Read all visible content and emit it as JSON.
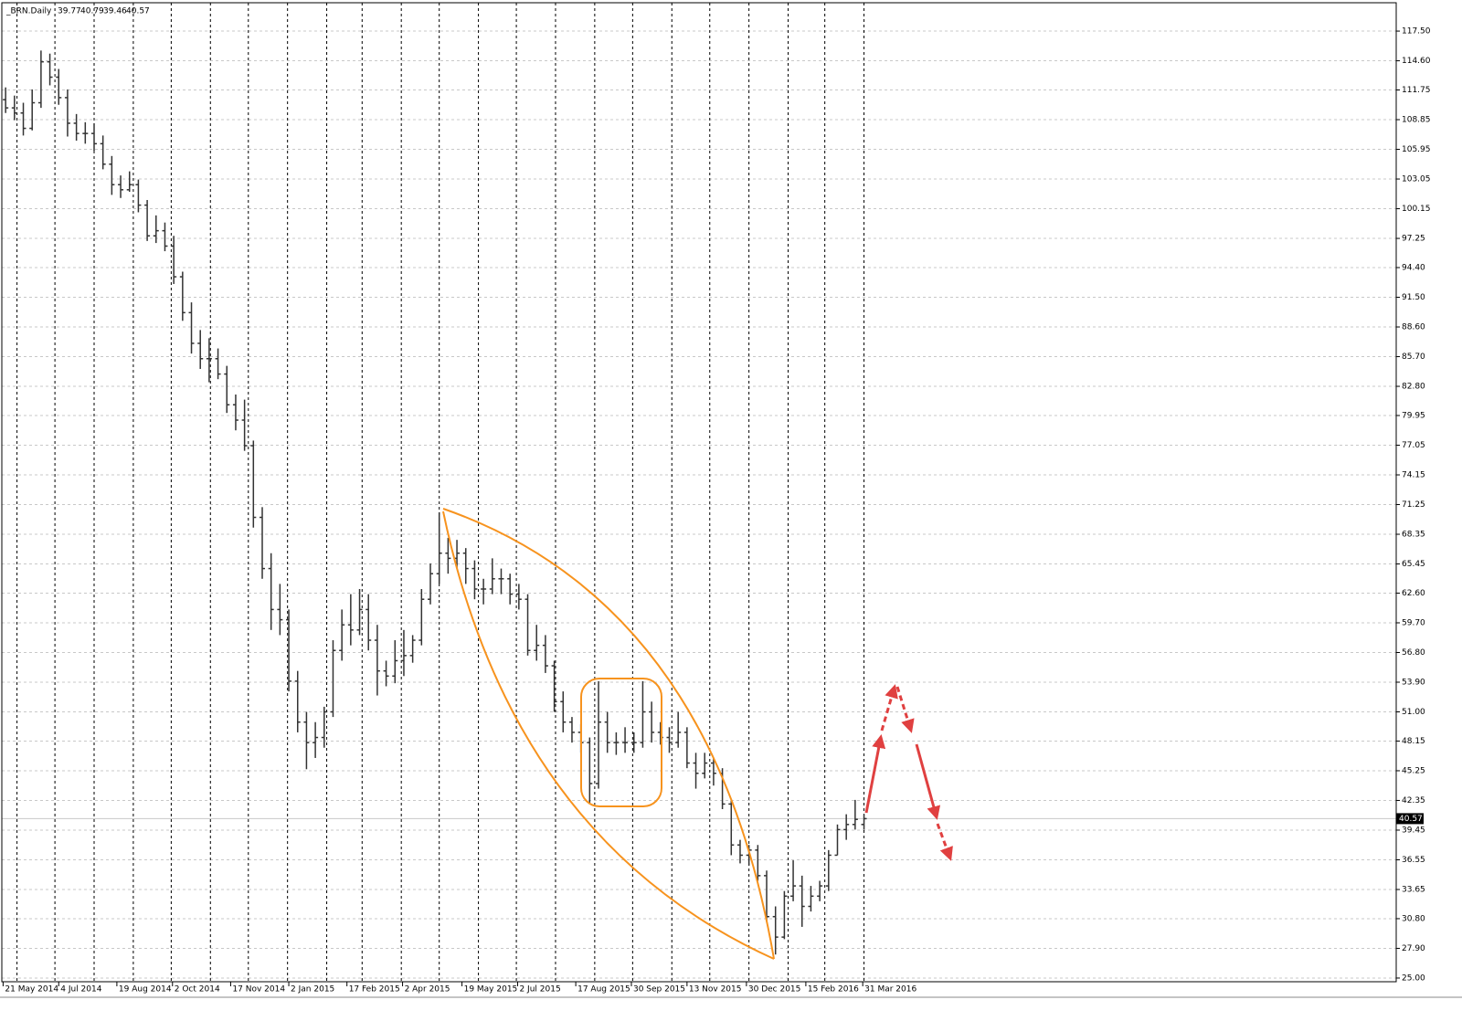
{
  "chart_data": {
    "type": "ohlc",
    "title": "_BRN.Daily",
    "last_bar": {
      "open": 39.77,
      "high": 40.79,
      "low": 39.46,
      "close": 40.57
    },
    "color": "#333333",
    "separator_color": "#000000",
    "grid": true,
    "x": [
      "2014-05-23",
      "2014-05-30",
      "2014-06-06",
      "2014-06-13",
      "2014-06-20",
      "2014-06-27",
      "2014-07-04",
      "2014-07-11",
      "2014-07-18",
      "2014-07-25",
      "2014-08-01",
      "2014-08-08",
      "2014-08-15",
      "2014-08-22",
      "2014-08-29",
      "2014-09-05",
      "2014-09-12",
      "2014-09-19",
      "2014-09-26",
      "2014-10-03",
      "2014-10-10",
      "2014-10-17",
      "2014-10-24",
      "2014-10-31",
      "2014-11-07",
      "2014-11-14",
      "2014-11-21",
      "2014-11-28",
      "2014-12-05",
      "2014-12-12",
      "2014-12-19",
      "2014-12-26",
      "2015-01-02",
      "2015-01-09",
      "2015-01-16",
      "2015-01-23",
      "2015-01-30",
      "2015-02-06",
      "2015-02-13",
      "2015-02-20",
      "2015-02-27",
      "2015-03-06",
      "2015-03-13",
      "2015-03-20",
      "2015-03-27",
      "2015-04-03",
      "2015-04-10",
      "2015-04-17",
      "2015-04-24",
      "2015-05-01",
      "2015-05-08",
      "2015-05-15",
      "2015-05-22",
      "2015-05-29",
      "2015-06-05",
      "2015-06-12",
      "2015-06-19",
      "2015-06-26",
      "2015-07-03",
      "2015-07-10",
      "2015-07-17",
      "2015-07-24",
      "2015-07-31",
      "2015-08-07",
      "2015-08-14",
      "2015-08-21",
      "2015-08-28",
      "2015-09-04",
      "2015-09-11",
      "2015-09-18",
      "2015-09-25",
      "2015-10-02",
      "2015-10-09",
      "2015-10-16",
      "2015-10-23",
      "2015-10-30",
      "2015-11-06",
      "2015-11-13",
      "2015-11-20",
      "2015-11-27",
      "2015-12-04",
      "2015-12-11",
      "2015-12-18",
      "2015-12-25",
      "2016-01-01",
      "2016-01-08",
      "2016-01-15",
      "2016-01-22",
      "2016-01-29",
      "2016-02-05",
      "2016-02-12",
      "2016-02-19",
      "2016-02-26",
      "2016-03-04",
      "2016-03-11",
      "2016-03-18",
      "2016-03-25",
      "2016-04-01"
    ],
    "open": [
      110.8,
      110,
      109.5,
      108,
      110.5,
      114.5,
      113,
      111,
      108.5,
      107.5,
      107.5,
      106.5,
      104.5,
      102.5,
      102,
      102.5,
      100.5,
      97.5,
      98,
      96.5,
      93.5,
      90,
      87,
      85.5,
      85.5,
      84,
      81,
      79.5,
      77,
      70,
      65,
      61,
      60,
      54,
      50,
      48,
      48.5,
      51,
      57,
      59.5,
      59,
      61,
      58,
      55,
      54.5,
      56,
      56.5,
      58,
      62,
      64.5,
      66.5,
      66,
      66.5,
      65,
      63,
      63,
      64,
      64,
      62.5,
      62,
      57,
      57.5,
      55.5,
      52,
      50,
      49,
      48,
      44,
      50,
      48,
      48,
      48,
      48,
      51,
      49,
      48.5,
      48,
      49,
      46,
      45,
      46,
      45,
      42,
      38,
      37,
      37.5,
      35,
      31,
      29,
      33,
      34,
      32,
      33,
      34,
      37,
      39.5,
      40,
      40
    ],
    "high": [
      112,
      111.2,
      110.5,
      111.8,
      115.6,
      115.3,
      113.8,
      111.8,
      109.4,
      108.6,
      108.5,
      107.3,
      105.3,
      103.4,
      103.8,
      103,
      101,
      99.5,
      98.8,
      97.5,
      94,
      91,
      88.3,
      87.5,
      86.5,
      84.8,
      82,
      81.5,
      77.5,
      71,
      66.5,
      63.5,
      61,
      55,
      51,
      50,
      51.5,
      58,
      61,
      62.5,
      63,
      62.5,
      59.5,
      56,
      58,
      59,
      58.5,
      63,
      65.5,
      70.5,
      68,
      67.8,
      67,
      65.8,
      64,
      66,
      65,
      64.5,
      63.5,
      62.5,
      59.5,
      58.5,
      56,
      53,
      50.5,
      49.8,
      48.5,
      54,
      51,
      49,
      49.5,
      49,
      54,
      52,
      50,
      49.5,
      51,
      49.5,
      47,
      47,
      46.5,
      45.5,
      42.5,
      38.5,
      38,
      38,
      35.5,
      32,
      33.5,
      36.5,
      35,
      34,
      34.5,
      37.5,
      40,
      41,
      42.4,
      41
    ],
    "low": [
      109.5,
      108.8,
      107.3,
      107.8,
      110,
      112.2,
      110.3,
      107.2,
      106.8,
      106.5,
      105.8,
      104,
      101.5,
      101.2,
      101.8,
      99.8,
      97,
      96.8,
      96,
      92.8,
      89.2,
      86,
      84.5,
      83.2,
      83.5,
      80.2,
      78.5,
      76.5,
      69,
      64,
      59,
      58.5,
      53,
      49,
      45.4,
      46.5,
      47.5,
      50.5,
      56,
      57.5,
      58.5,
      57,
      52.6,
      53.5,
      53.8,
      54.5,
      55.8,
      57.5,
      61.5,
      63.5,
      64.5,
      65,
      63.5,
      62,
      61.5,
      62.5,
      62.5,
      61.5,
      61,
      56.5,
      56,
      54.8,
      51,
      49,
      48,
      47,
      42.1,
      43.5,
      47,
      46.8,
      47,
      47,
      47.5,
      48,
      47.8,
      47,
      47.5,
      45.5,
      43.5,
      44.5,
      43.8,
      41.5,
      37,
      36.2,
      36,
      34.5,
      30.5,
      27.3,
      28.8,
      32.5,
      30,
      31.5,
      32.5,
      33.5,
      37,
      38.5,
      39.5,
      39.5
    ],
    "close": [
      110,
      109.5,
      108,
      110.5,
      114.5,
      113,
      111,
      108.5,
      107.5,
      107.5,
      106.5,
      104.5,
      102.5,
      102,
      102.5,
      100.5,
      97.5,
      98,
      96.5,
      93.5,
      90,
      87,
      85.5,
      85.5,
      84,
      81,
      79.5,
      77,
      70,
      65,
      61,
      60,
      54,
      50,
      48,
      48.5,
      51,
      57,
      59.5,
      59,
      61,
      58,
      55,
      54.5,
      56,
      56.5,
      58,
      62,
      64.5,
      66.5,
      66,
      66.5,
      65,
      63,
      63,
      64,
      64,
      62.5,
      62,
      57,
      57.5,
      55.5,
      52,
      50,
      49,
      48,
      44,
      50,
      48,
      48,
      48,
      48,
      51,
      49,
      48.5,
      48,
      49,
      46,
      45,
      46,
      45,
      42,
      38,
      37,
      37.5,
      35,
      31,
      29,
      33,
      34,
      32,
      33,
      34,
      37,
      39.5,
      40,
      40.5,
      40.57
    ],
    "xlim": [
      "2014-05-20",
      "2017-05-27"
    ],
    "xticks": [
      {
        "value": "2014-05-21",
        "label": "21 May 2014"
      },
      {
        "value": "2014-07-04",
        "label": "4 Jul 2014"
      },
      {
        "value": "2014-08-19",
        "label": "19 Aug 2014"
      },
      {
        "value": "2014-10-02",
        "label": "2 Oct 2014"
      },
      {
        "value": "2014-11-17",
        "label": "17 Nov 2014"
      },
      {
        "value": "2015-01-02",
        "label": "2 Jan 2015"
      },
      {
        "value": "2015-02-17",
        "label": "17 Feb 2015"
      },
      {
        "value": "2015-04-02",
        "label": "2 Apr 2015"
      },
      {
        "value": "2015-05-19",
        "label": "19 May 2015"
      },
      {
        "value": "2015-07-02",
        "label": "2 Jul 2015"
      },
      {
        "value": "2015-08-17",
        "label": "17 Aug 2015"
      },
      {
        "value": "2015-09-30",
        "label": "30 Sep 2015"
      },
      {
        "value": "2015-11-13",
        "label": "13 Nov 2015"
      },
      {
        "value": "2015-12-30",
        "label": "30 Dec 2015"
      },
      {
        "value": "2016-02-15",
        "label": "15 Feb 2016"
      },
      {
        "value": "2016-03-31",
        "label": "31 Mar 2016"
      }
    ],
    "period_separators": [
      "2014-06-01",
      "2014-07-01",
      "2014-08-01",
      "2014-09-01",
      "2014-10-01",
      "2014-11-01",
      "2014-12-01",
      "2015-01-01",
      "2015-02-01",
      "2015-03-01",
      "2015-04-01",
      "2015-05-01",
      "2015-06-01",
      "2015-07-01",
      "2015-08-01",
      "2015-09-01",
      "2015-10-01",
      "2015-11-01",
      "2015-12-01",
      "2016-01-01",
      "2016-02-01",
      "2016-03-01",
      "2016-04-01"
    ],
    "ylim": [
      24.64,
      120.27
    ],
    "yticks": [
      {
        "value": 117.5,
        "label": "117.50"
      },
      {
        "value": 114.6,
        "label": "114.60"
      },
      111.75,
      108.85,
      105.95,
      103.05,
      100.15,
      97.25,
      {
        "value": 94.4,
        "label": "94.40"
      },
      {
        "value": 91.5,
        "label": "91.50"
      },
      {
        "value": 88.6,
        "label": "88.60"
      },
      {
        "value": 85.7,
        "label": "85.70"
      },
      {
        "value": 82.8,
        "label": "82.80"
      },
      79.95,
      77.05,
      74.15,
      71.25,
      68.35,
      65.45,
      {
        "value": 62.6,
        "label": "62.60"
      },
      {
        "value": 59.7,
        "label": "59.70"
      },
      {
        "value": 56.8,
        "label": "56.80"
      },
      {
        "value": 53.9,
        "label": "53.90"
      },
      {
        "value": 51,
        "label": "51.00"
      },
      48.15,
      45.25,
      42.35,
      39.45,
      36.55,
      33.65,
      {
        "value": 30.8,
        "label": "30.80"
      },
      {
        "value": 27.9,
        "label": "27.90"
      },
      {
        "value": 25,
        "label": "25.00"
      }
    ]
  }
}
